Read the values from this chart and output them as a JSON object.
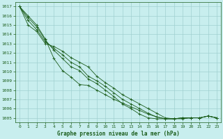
{
  "title": "Graphe pression niveau de la mer (hPa)",
  "x_ticks": [
    0,
    1,
    2,
    3,
    4,
    5,
    6,
    7,
    8,
    9,
    10,
    11,
    12,
    13,
    14,
    15,
    16,
    17,
    18,
    19,
    20,
    21,
    22,
    23
  ],
  "ylim": [
    1004.5,
    1017.5
  ],
  "xlim": [
    -0.5,
    23.5
  ],
  "yticks": [
    1005,
    1006,
    1007,
    1008,
    1009,
    1010,
    1011,
    1012,
    1013,
    1014,
    1015,
    1016,
    1017
  ],
  "bg_color": "#c8eeee",
  "grid_color": "#a0d0d0",
  "line_color": "#1a5c1a",
  "marker": "+",
  "lines": [
    [
      1017.0,
      1016.0,
      1015.0,
      1013.5,
      1011.4,
      1010.1,
      1009.4,
      1008.6,
      1008.5,
      1008.0,
      1007.5,
      1007.0,
      1006.6,
      1006.2,
      1005.8,
      1005.4,
      1005.1,
      1004.9,
      1004.9,
      1005.0,
      1005.0,
      1005.0,
      1005.2,
      1005.0
    ],
    [
      1017.0,
      1015.8,
      1014.8,
      1013.4,
      1012.3,
      1011.4,
      1010.5,
      1010.1,
      1009.2,
      1008.7,
      1008.0,
      1007.3,
      1006.5,
      1006.0,
      1005.4,
      1005.0,
      1004.9,
      1004.9,
      1004.9,
      1005.0,
      1005.0,
      1005.0,
      1005.2,
      1005.0
    ],
    [
      1017.0,
      1015.5,
      1014.5,
      1013.2,
      1012.5,
      1011.8,
      1011.0,
      1010.5,
      1009.5,
      1009.0,
      1008.4,
      1007.7,
      1007.0,
      1006.5,
      1006.0,
      1005.5,
      1005.1,
      1004.9,
      1004.9,
      1005.0,
      1005.0,
      1005.0,
      1005.2,
      1005.0
    ],
    [
      1017.0,
      1015.0,
      1014.3,
      1013.0,
      1012.7,
      1012.2,
      1011.5,
      1011.0,
      1010.5,
      1009.5,
      1008.8,
      1008.2,
      1007.5,
      1007.0,
      1006.5,
      1006.0,
      1005.5,
      1005.0,
      1004.9,
      1004.9,
      1005.0,
      1005.0,
      1005.2,
      1005.0
    ]
  ]
}
